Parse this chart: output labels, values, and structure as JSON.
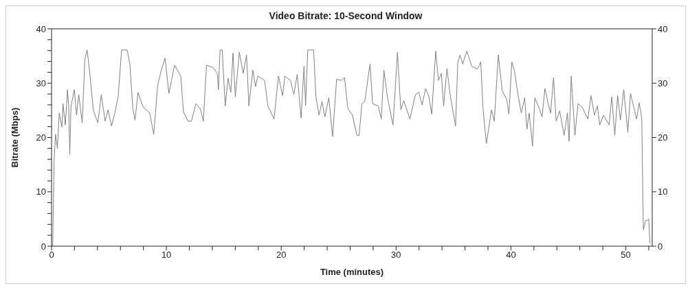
{
  "chart_data": {
    "type": "line",
    "title": "Video Bitrate: 10-Second Window",
    "xlabel": "Time (minutes)",
    "ylabel": "Bitrate (Mbps)",
    "xlim": [
      0,
      52.3
    ],
    "xticks": [
      0,
      {
        "value": 2,
        "label": null
      },
      {
        "value": 4,
        "label": null
      },
      {
        "value": 6,
        "label": null
      },
      {
        "value": 8,
        "label": null
      },
      10,
      {
        "value": 12,
        "label": null
      },
      {
        "value": 14,
        "label": null
      },
      {
        "value": 16,
        "label": null
      },
      {
        "value": 18,
        "label": null
      },
      20,
      {
        "value": 22,
        "label": null
      },
      {
        "value": 24,
        "label": null
      },
      {
        "value": 26,
        "label": null
      },
      {
        "value": 28,
        "label": null
      },
      30,
      {
        "value": 32,
        "label": null
      },
      {
        "value": 34,
        "label": null
      },
      {
        "value": 36,
        "label": null
      },
      {
        "value": 38,
        "label": null
      },
      40,
      {
        "value": 42,
        "label": null
      },
      {
        "value": 44,
        "label": null
      },
      {
        "value": 46,
        "label": null
      },
      {
        "value": 48,
        "label": null
      },
      50,
      {
        "value": 52,
        "label": null
      }
    ],
    "ylim": [
      0,
      40
    ],
    "yticks": [
      0,
      {
        "value": 2,
        "label": null
      },
      {
        "value": 4,
        "label": null
      },
      {
        "value": 6,
        "label": null
      },
      {
        "value": 8,
        "label": null
      },
      10,
      {
        "value": 12,
        "label": null
      },
      {
        "value": 14,
        "label": null
      },
      {
        "value": 16,
        "label": null
      },
      {
        "value": 18,
        "label": null
      },
      20,
      {
        "value": 22,
        "label": null
      },
      {
        "value": 24,
        "label": null
      },
      {
        "value": 26,
        "label": null
      },
      {
        "value": 28,
        "label": null
      },
      30,
      {
        "value": 32,
        "label": null
      },
      {
        "value": 34,
        "label": null
      },
      {
        "value": 36,
        "label": null
      },
      {
        "value": 38,
        "label": null
      },
      40
    ],
    "y2lim": [
      0,
      40
    ],
    "y2ticks": [
      0,
      10,
      20,
      30,
      40
    ],
    "grid": false,
    "legend": false,
    "marker": "none",
    "line_style": "solid",
    "series": [
      {
        "color": "#808080",
        "x": [
          0.1,
          0.22,
          0.35,
          0.51,
          0.67,
          0.9,
          1.0,
          1.2,
          1.39,
          1.49,
          1.59,
          1.69,
          1.98,
          2.18,
          2.37,
          2.67,
          2.9,
          3.1,
          3.29,
          3.65,
          4.04,
          4.33,
          4.67,
          4.92,
          5.22,
          5.51,
          5.8,
          6.1,
          6.59,
          6.82,
          7.08,
          7.27,
          7.53,
          7.96,
          8.55,
          8.9,
          9.24,
          9.53,
          9.88,
          10.22,
          10.71,
          11.25,
          11.49,
          11.88,
          12.18,
          12.57,
          12.96,
          13.22,
          13.49,
          14.04,
          14.43,
          14.53,
          14.67,
          14.86,
          15.12,
          15.37,
          15.61,
          15.8,
          16.0,
          16.35,
          16.69,
          16.98,
          17.18,
          17.53,
          17.76,
          17.96,
          18.55,
          18.84,
          19.37,
          19.76,
          20.12,
          20.31,
          20.8,
          21.1,
          21.39,
          21.73,
          21.98,
          22.12,
          22.31,
          22.82,
          23.02,
          23.29,
          23.55,
          23.8,
          24.14,
          24.47,
          24.82,
          25.22,
          25.51,
          25.8,
          26.2,
          26.59,
          26.78,
          27.02,
          27.27,
          27.73,
          27.96,
          28.45,
          28.71,
          28.94,
          29.24,
          29.73,
          30.12,
          30.41,
          30.67,
          31.2,
          31.69,
          31.98,
          32.27,
          32.57,
          32.86,
          33.1,
          33.45,
          33.69,
          33.94,
          34.14,
          34.43,
          34.73,
          35.18,
          35.37,
          35.57,
          35.8,
          36.16,
          36.59,
          37.08,
          37.37,
          37.57,
          37.86,
          38.31,
          38.55,
          38.9,
          39.24,
          39.63,
          39.82,
          40.08,
          40.31,
          40.61,
          40.9,
          41.2,
          41.39,
          41.59,
          41.88,
          42.08,
          42.47,
          42.71,
          42.96,
          43.25,
          43.45,
          43.71,
          43.94,
          44.24,
          44.63,
          44.92,
          45.06,
          45.25,
          45.57,
          45.84,
          46.2,
          46.69,
          46.98,
          47.27,
          47.53,
          47.73,
          48.06,
          48.55,
          48.78,
          49.04,
          49.29,
          49.53,
          49.82,
          50.18,
          50.41,
          50.94,
          51.16,
          51.39,
          51.53,
          51.73,
          51.88,
          52.0,
          52.1
        ],
        "values": [
          0,
          15.6,
          20.6,
          18.0,
          24.5,
          21.9,
          26.2,
          22.3,
          28.8,
          25.8,
          16.9,
          25.6,
          28.8,
          24.1,
          27.9,
          22.7,
          34.4,
          36.1,
          32.6,
          24.9,
          22.7,
          27.9,
          23.0,
          25.1,
          22.1,
          24.5,
          27.5,
          36.1,
          36.1,
          33.5,
          25.3,
          23.2,
          28.3,
          25.6,
          24.5,
          20.6,
          29.6,
          32.2,
          34.6,
          28.1,
          33.3,
          31.3,
          24.7,
          23.0,
          23.0,
          26.2,
          25.3,
          23.0,
          33.3,
          32.9,
          31.8,
          28.8,
          36.1,
          36.1,
          25.8,
          30.9,
          28.3,
          35.5,
          27.5,
          35.7,
          31.8,
          35.2,
          25.8,
          32.4,
          29.4,
          31.3,
          30.5,
          25.8,
          23.4,
          31.3,
          27.7,
          31.3,
          30.5,
          27.9,
          31.6,
          23.6,
          33.1,
          25.9,
          36.1,
          36.1,
          27.5,
          24.1,
          26.6,
          23.8,
          27.3,
          20.2,
          30.7,
          30.5,
          31.0,
          25.3,
          24.1,
          20.4,
          20.4,
          26.2,
          26.6,
          33.5,
          26.2,
          25.8,
          23.4,
          32.4,
          27.5,
          22.3,
          35.7,
          25.1,
          26.8,
          23.4,
          27.9,
          28.3,
          26.0,
          29.0,
          27.5,
          24.3,
          35.9,
          30.5,
          31.8,
          25.8,
          32.7,
          27.5,
          22.1,
          33.7,
          35.2,
          33.5,
          35.9,
          33.1,
          32.6,
          33.9,
          25.3,
          18.9,
          25.1,
          23.0,
          35.2,
          28.6,
          27.0,
          24.3,
          33.9,
          32.2,
          27.9,
          24.5,
          27.3,
          21.5,
          24.5,
          18.4,
          27.3,
          25.3,
          23.8,
          29.0,
          26.2,
          24.5,
          31.0,
          23.0,
          24.9,
          20.4,
          24.5,
          19.3,
          31.3,
          20.4,
          26.2,
          25.6,
          23.4,
          27.7,
          24.1,
          25.8,
          22.3,
          24.1,
          22.3,
          27.5,
          20.4,
          27.7,
          23.2,
          28.8,
          21.0,
          28.1,
          23.4,
          26.4,
          23.6,
          3.0,
          4.7,
          4.7,
          5.0,
          0.5
        ]
      }
    ]
  }
}
